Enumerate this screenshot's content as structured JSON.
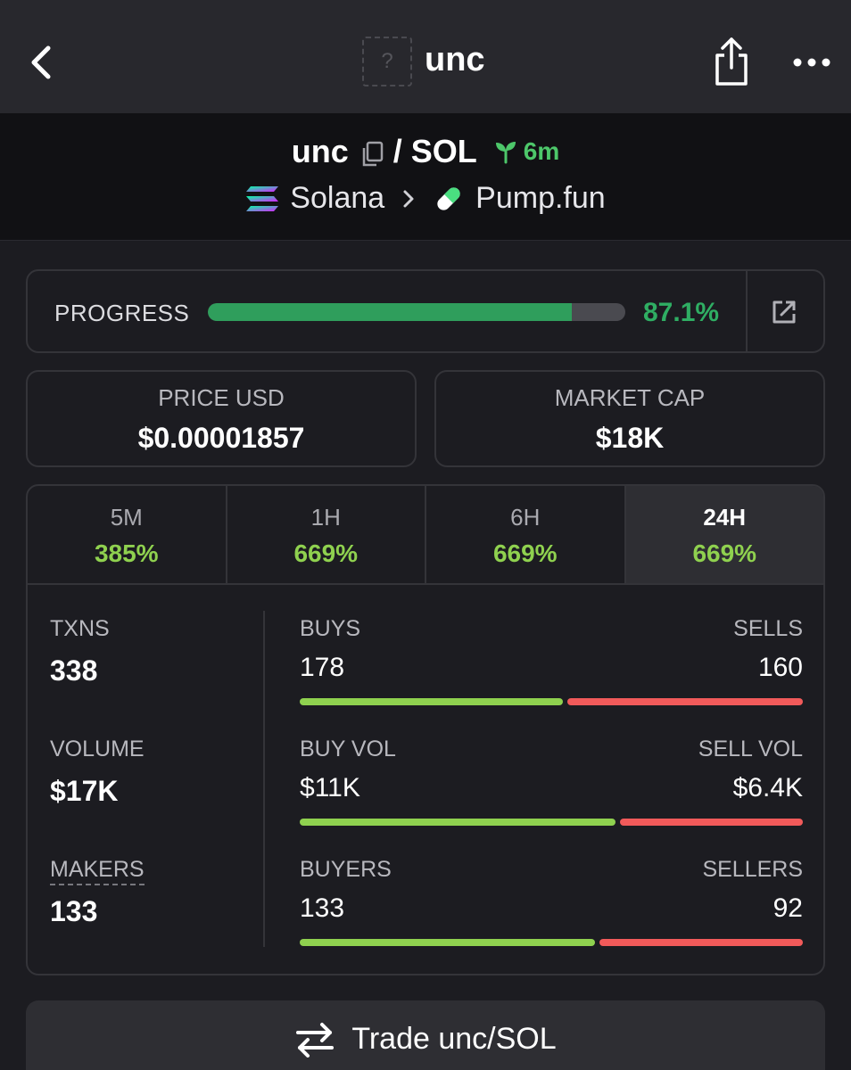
{
  "header": {
    "title": "unc",
    "logo_placeholder": "?"
  },
  "pair": {
    "base": "unc",
    "separator": "/",
    "quote": "SOL",
    "age": "6m"
  },
  "chain": {
    "name": "Solana",
    "dex": "Pump.fun"
  },
  "progress": {
    "label": "PROGRESS",
    "value": "87.1%",
    "fraction": 0.871
  },
  "price": {
    "label": "PRICE USD",
    "value": "$0.00001857"
  },
  "market_cap": {
    "label": "MARKET CAP",
    "value": "$18K"
  },
  "tabs": [
    {
      "label": "5M",
      "change": "385%"
    },
    {
      "label": "1H",
      "change": "669%"
    },
    {
      "label": "6H",
      "change": "669%"
    },
    {
      "label": "24H",
      "change": "669%",
      "active": true
    }
  ],
  "stats": {
    "txns": {
      "label": "TXNS",
      "value": "338"
    },
    "volume": {
      "label": "VOLUME",
      "value": "$17K"
    },
    "makers": {
      "label": "MAKERS",
      "value": "133"
    }
  },
  "ratios": {
    "txns": {
      "buy_label": "BUYS",
      "buy_value": "178",
      "sell_label": "SELLS",
      "sell_value": "160",
      "buy_fraction": 0.527
    },
    "volume": {
      "buy_label": "BUY VOL",
      "buy_value": "$11K",
      "sell_label": "SELL VOL",
      "sell_value": "$6.4K",
      "buy_fraction": 0.632
    },
    "makers": {
      "buy_label": "BUYERS",
      "buy_value": "133",
      "sell_label": "SELLERS",
      "sell_value": "92",
      "buy_fraction": 0.591
    }
  },
  "trade_button": {
    "label": "Trade unc/SOL"
  },
  "colors": {
    "accent_green": "#2f9e5c",
    "buy": "#8fd14f",
    "sell": "#f15a5a",
    "age_green": "#4dc76a"
  }
}
